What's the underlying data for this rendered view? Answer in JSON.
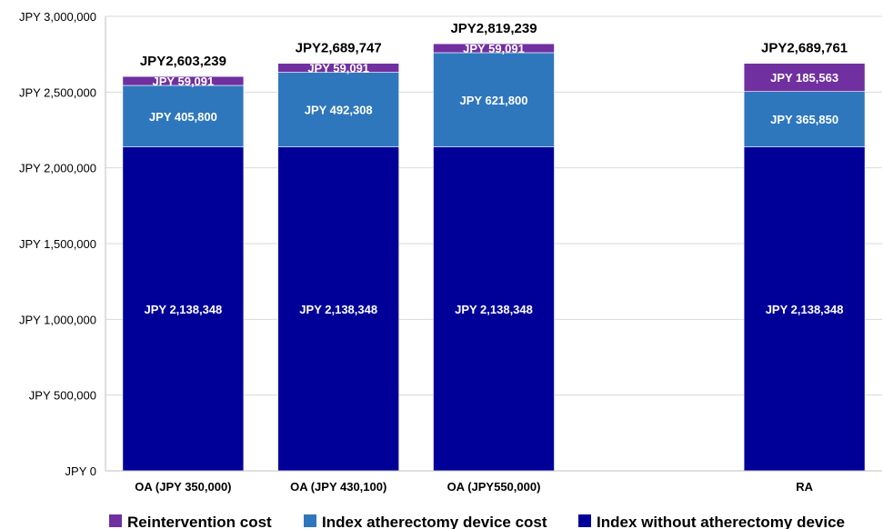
{
  "chart_data": {
    "type": "bar",
    "stacked": true,
    "categories": [
      "OA (JPY 350,000)",
      "OA (JPY 430,100)",
      "OA (JPY550,000)",
      "",
      "RA"
    ],
    "series": [
      {
        "name": "Index without atherectomy device",
        "color": "#000099",
        "values": [
          2138348,
          2138348,
          2138348,
          null,
          2138348
        ],
        "labels": [
          "JPY 2,138,348",
          "JPY 2,138,348",
          "JPY 2,138,348",
          "",
          "JPY 2,138,348"
        ]
      },
      {
        "name": "Index atherectomy device cost",
        "color": "#2f77bd",
        "values": [
          405800,
          492308,
          621800,
          null,
          365850
        ],
        "labels": [
          "JPY 405,800",
          "JPY 492,308",
          "JPY 621,800",
          "",
          "JPY 365,850"
        ]
      },
      {
        "name": "Reintervention cost",
        "color": "#7030a0",
        "values": [
          59091,
          59091,
          59091,
          null,
          185563
        ],
        "labels": [
          "JPY 59,091",
          "JPY 59,091",
          "JPY 59,091",
          "",
          "JPY 185,563"
        ]
      }
    ],
    "totals": [
      "JPY2,603,239",
      "JPY2,689,747",
      "JPY2,819,239",
      "",
      "JPY2,689,761"
    ],
    "yticks": [
      0,
      500000,
      1000000,
      1500000,
      2000000,
      2500000,
      3000000
    ],
    "ytick_labels": [
      "JPY 0",
      "JPY 500,000",
      "JPY 1,000,000",
      "JPY 1,500,000",
      "JPY 2,000,000",
      "JPY 2,500,000",
      "JPY 3,000,000"
    ],
    "ylim": [
      0,
      3000000
    ],
    "grid": true,
    "legend": {
      "position": "bottom",
      "order": [
        "Reintervention cost",
        "Index atherectomy device cost",
        "Index without atherectomy device"
      ]
    }
  }
}
